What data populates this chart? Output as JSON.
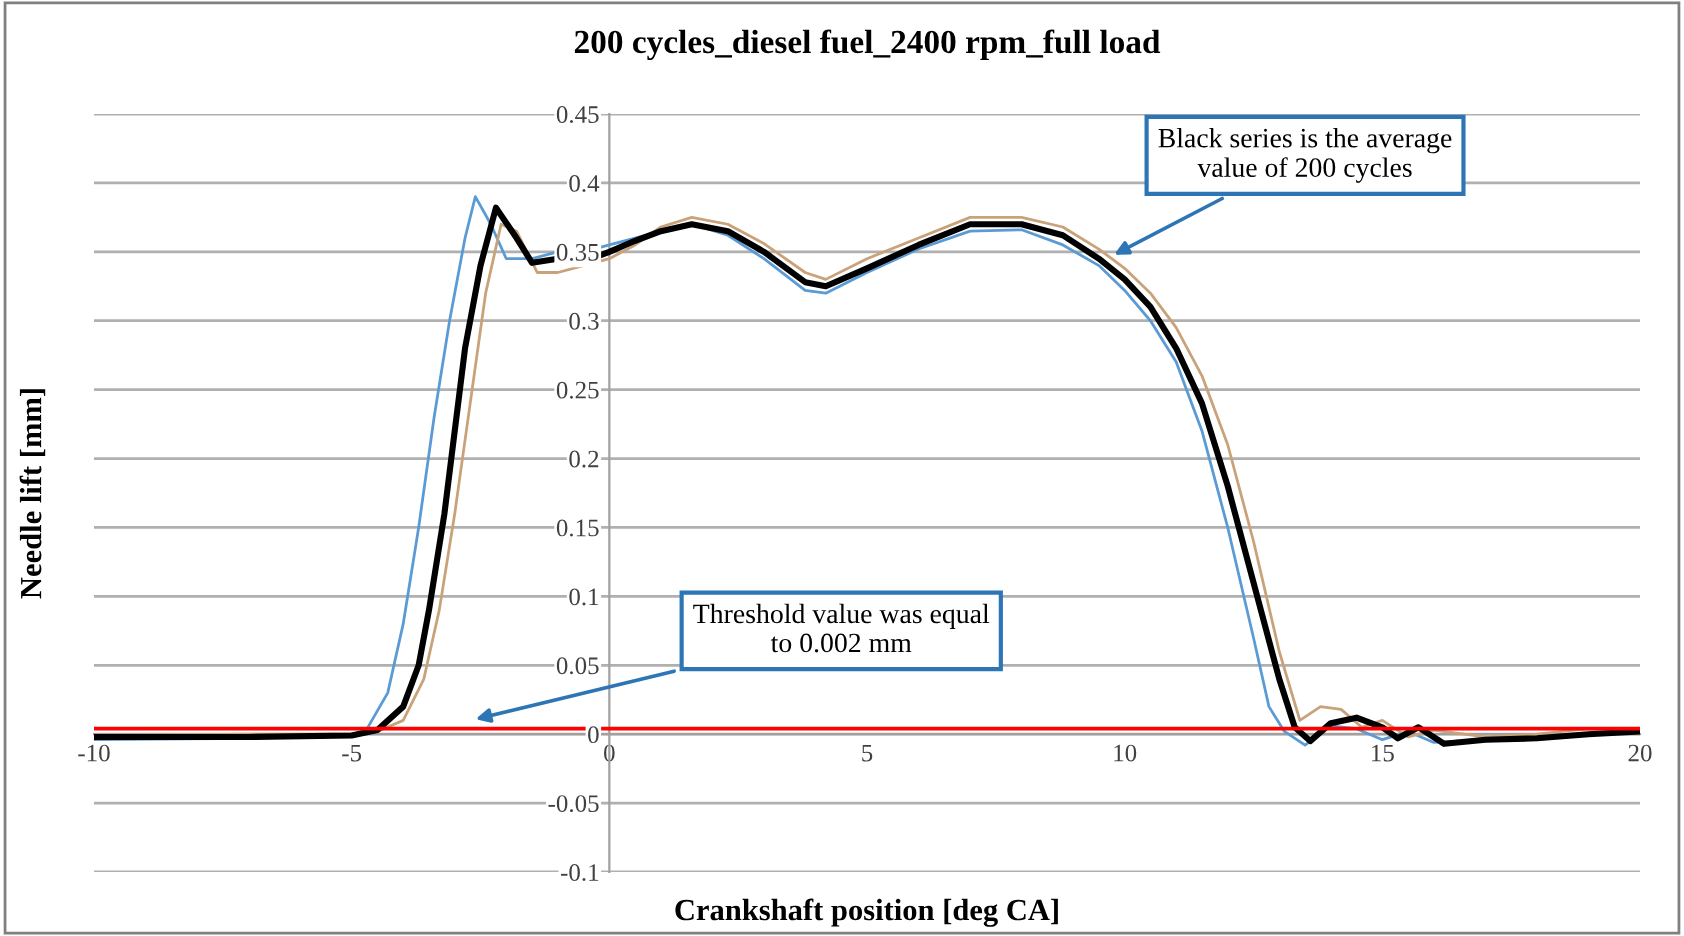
{
  "chart_data": {
    "type": "line",
    "title": "200 cycles_diesel fuel_2400 rpm_full load",
    "xlabel": "Crankshaft position [deg CA]",
    "ylabel": "Needle lift [mm]",
    "xlim": [
      -10,
      20
    ],
    "xticks": [
      -10,
      -5,
      0,
      5,
      10,
      15,
      20
    ],
    "ylim": [
      -0.1,
      0.45
    ],
    "yticks": [
      -0.1,
      -0.05,
      0,
      0.05,
      0.1,
      0.15,
      0.2,
      0.25,
      0.3,
      0.35,
      0.4,
      0.45
    ],
    "grid": "y",
    "marker": "none",
    "line_style": "solid",
    "series": [
      {
        "color": "#5b9bd5",
        "x": [
          -10,
          -7,
          -5,
          -4.7,
          -4.3,
          -4,
          -3.7,
          -3.4,
          -3.1,
          -2.8,
          -2.6,
          -2.3,
          -2,
          -1.5,
          -1,
          -0.5,
          0,
          0.5,
          1,
          1.6,
          2.3,
          3,
          3.8,
          4.2,
          5,
          6,
          7,
          8,
          8.8,
          9.5,
          10,
          10.5,
          11,
          11.5,
          12,
          12.5,
          12.8,
          13.1,
          13.5,
          14,
          14.5,
          15,
          15.5,
          16,
          17
        ],
        "values": [
          -0.004,
          -0.003,
          -0.001,
          0.004,
          0.03,
          0.08,
          0.15,
          0.23,
          0.3,
          0.36,
          0.39,
          0.37,
          0.345,
          0.345,
          0.35,
          0.35,
          0.355,
          0.36,
          0.365,
          0.37,
          0.362,
          0.345,
          0.322,
          0.32,
          0.335,
          0.352,
          0.365,
          0.366,
          0.355,
          0.34,
          0.322,
          0.3,
          0.27,
          0.22,
          0.15,
          0.07,
          0.02,
          0.002,
          -0.008,
          0.006,
          0.004,
          -0.004,
          0.002,
          -0.006,
          -0.004
        ]
      },
      {
        "color": "#c9a27a",
        "x": [
          -10,
          -7,
          -5,
          -4.5,
          -4,
          -3.6,
          -3.3,
          -3,
          -2.7,
          -2.4,
          -2.1,
          -1.8,
          -1.4,
          -1,
          -0.5,
          0,
          0.5,
          1,
          1.6,
          2.3,
          3,
          3.8,
          4.2,
          5,
          6,
          7,
          8,
          8.8,
          9.5,
          10,
          10.5,
          11,
          11.5,
          12,
          12.5,
          13,
          13.4,
          13.8,
          14.2,
          14.6,
          15,
          15.5,
          16,
          17,
          18,
          19,
          20
        ],
        "values": [
          -0.001,
          0.0,
          0.0,
          0.002,
          0.01,
          0.04,
          0.09,
          0.16,
          0.24,
          0.32,
          0.37,
          0.365,
          0.335,
          0.335,
          0.34,
          0.345,
          0.355,
          0.368,
          0.375,
          0.37,
          0.356,
          0.335,
          0.33,
          0.345,
          0.36,
          0.375,
          0.375,
          0.368,
          0.352,
          0.338,
          0.32,
          0.295,
          0.26,
          0.21,
          0.14,
          0.06,
          0.01,
          0.02,
          0.018,
          0.005,
          0.01,
          -0.002,
          0.003,
          -0.002,
          0.0,
          0.004,
          0.003
        ]
      },
      {
        "color": "#000000",
        "x": [
          -10,
          -7,
          -5,
          -4.5,
          -4,
          -3.7,
          -3.5,
          -3.2,
          -3,
          -2.8,
          -2.5,
          -2.2,
          -1.8,
          -1.5,
          -1,
          -0.5,
          0,
          0.5,
          1,
          1.6,
          2.3,
          3,
          3.8,
          4.2,
          5,
          6,
          7,
          8,
          8.8,
          9.5,
          10,
          10.5,
          11,
          11.5,
          12,
          12.5,
          13,
          13.3,
          13.6,
          14,
          14.5,
          15,
          15.3,
          15.7,
          16.2,
          17,
          18,
          19,
          20
        ],
        "values": [
          -0.002,
          -0.002,
          -0.001,
          0.003,
          0.02,
          0.05,
          0.09,
          0.16,
          0.22,
          0.28,
          0.34,
          0.382,
          0.36,
          0.342,
          0.345,
          0.343,
          0.35,
          0.358,
          0.365,
          0.37,
          0.365,
          0.35,
          0.328,
          0.325,
          0.338,
          0.355,
          0.37,
          0.37,
          0.362,
          0.345,
          0.33,
          0.31,
          0.28,
          0.24,
          0.18,
          0.11,
          0.04,
          0.005,
          -0.005,
          0.008,
          0.012,
          0.005,
          -0.003,
          0.005,
          -0.007,
          -0.004,
          -0.003,
          0.0,
          0.002
        ]
      }
    ],
    "ref_lines": [
      {
        "axis": "y",
        "value": 0.004,
        "color": "#ff0000"
      }
    ],
    "annotations": [
      {
        "text": "Black series is the average\nvalue of 200 cycles",
        "x": 9.7,
        "y": 0.346
      },
      {
        "text": "Threshold value was equal\nto 0.002 mm",
        "x": -2.7,
        "y": 0.01
      }
    ]
  }
}
